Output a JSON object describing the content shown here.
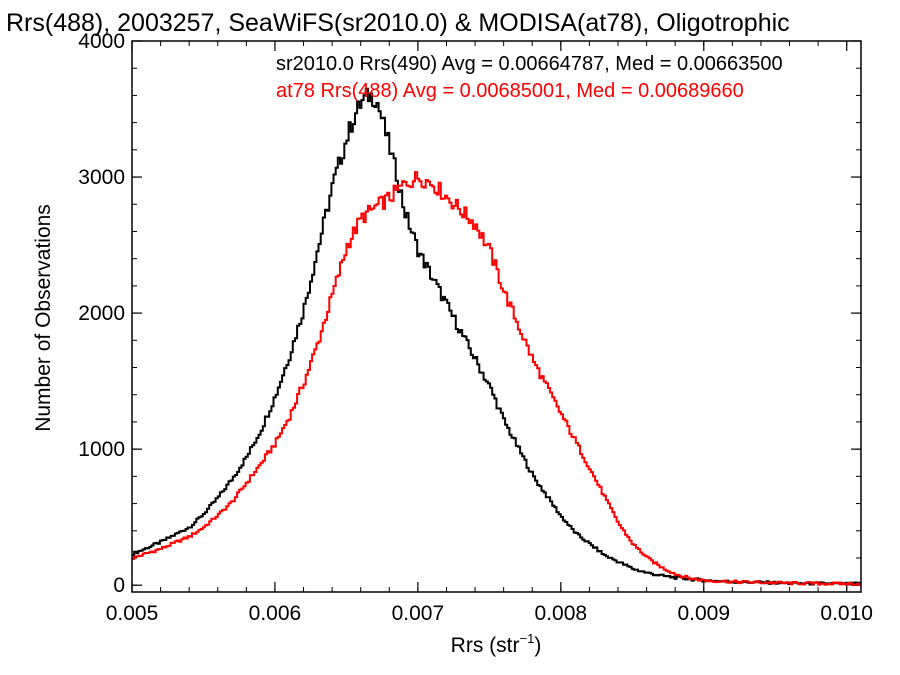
{
  "chart_data": {
    "type": "line",
    "title": "Rrs(488), 2003257, SeaWiFS(sr2010.0) & MODISA(at78), Oligotrophic",
    "xlabel_main": "Rrs (str",
    "xlabel_sup": "−1",
    "xlabel_close": ")",
    "ylabel": "Number of Observations",
    "xlim": [
      0.005,
      0.0101
    ],
    "ylim": [
      -50,
      4000
    ],
    "x_ticks": [
      "0.005",
      "0.006",
      "0.007",
      "0.008",
      "0.009",
      "0.010"
    ],
    "x_tick_values": [
      0.005,
      0.006,
      0.007,
      0.008,
      0.009,
      0.01
    ],
    "y_ticks": [
      "0",
      "1000",
      "2000",
      "3000",
      "4000"
    ],
    "y_tick_values": [
      0,
      1000,
      2000,
      3000,
      4000
    ],
    "legend": [
      "sr2010.0 Rrs(490) Avg = 0.00664787, Med = 0.00663500",
      "at78 Rrs(488) Avg = 0.00685001, Med = 0.00689660"
    ],
    "series": [
      {
        "name": "sr2010.0 Rrs(490)",
        "color": "#000000",
        "x": [
          0.005,
          0.0052,
          0.0054,
          0.0055,
          0.0056,
          0.0057,
          0.0058,
          0.0059,
          0.006,
          0.0061,
          0.0062,
          0.0063,
          0.0064,
          0.0065,
          0.00655,
          0.0066,
          0.00665,
          0.0067,
          0.00675,
          0.0068,
          0.00685,
          0.0069,
          0.007,
          0.0071,
          0.0072,
          0.0073,
          0.0074,
          0.0075,
          0.0076,
          0.0077,
          0.0078,
          0.0079,
          0.008,
          0.0081,
          0.0082,
          0.0083,
          0.0084,
          0.0085,
          0.0086,
          0.0087,
          0.0088,
          0.0089,
          0.009,
          0.0092,
          0.0094,
          0.0096,
          0.0098,
          0.01,
          0.0101
        ],
        "y": [
          230,
          320,
          430,
          530,
          650,
          790,
          950,
          1150,
          1400,
          1700,
          2050,
          2500,
          2950,
          3300,
          3450,
          3550,
          3600,
          3580,
          3400,
          3200,
          3000,
          2750,
          2450,
          2250,
          2050,
          1850,
          1650,
          1450,
          1200,
          1000,
          800,
          650,
          500,
          380,
          300,
          220,
          170,
          120,
          90,
          70,
          55,
          45,
          35,
          25,
          20,
          15,
          12,
          10,
          10
        ]
      },
      {
        "name": "at78 Rrs(488)",
        "color": "#ff0000",
        "x": [
          0.005,
          0.0052,
          0.0054,
          0.0055,
          0.0056,
          0.0057,
          0.0058,
          0.0059,
          0.006,
          0.0061,
          0.0062,
          0.0063,
          0.0064,
          0.0065,
          0.0066,
          0.0067,
          0.0068,
          0.0069,
          0.007,
          0.0071,
          0.0072,
          0.0073,
          0.0074,
          0.0075,
          0.0076,
          0.0077,
          0.0078,
          0.0079,
          0.008,
          0.0081,
          0.0082,
          0.0083,
          0.0084,
          0.0085,
          0.0086,
          0.0087,
          0.0088,
          0.0089,
          0.009,
          0.0092,
          0.0094,
          0.0096,
          0.0098,
          0.01,
          0.0101
        ],
        "y": [
          200,
          270,
          360,
          430,
          520,
          620,
          760,
          900,
          1050,
          1250,
          1500,
          1800,
          2150,
          2500,
          2700,
          2780,
          2850,
          2950,
          3000,
          2950,
          2850,
          2750,
          2650,
          2450,
          2150,
          1900,
          1650,
          1450,
          1250,
          1050,
          850,
          650,
          450,
          300,
          200,
          130,
          80,
          50,
          35,
          25,
          20,
          15,
          12,
          10,
          10
        ]
      }
    ]
  }
}
